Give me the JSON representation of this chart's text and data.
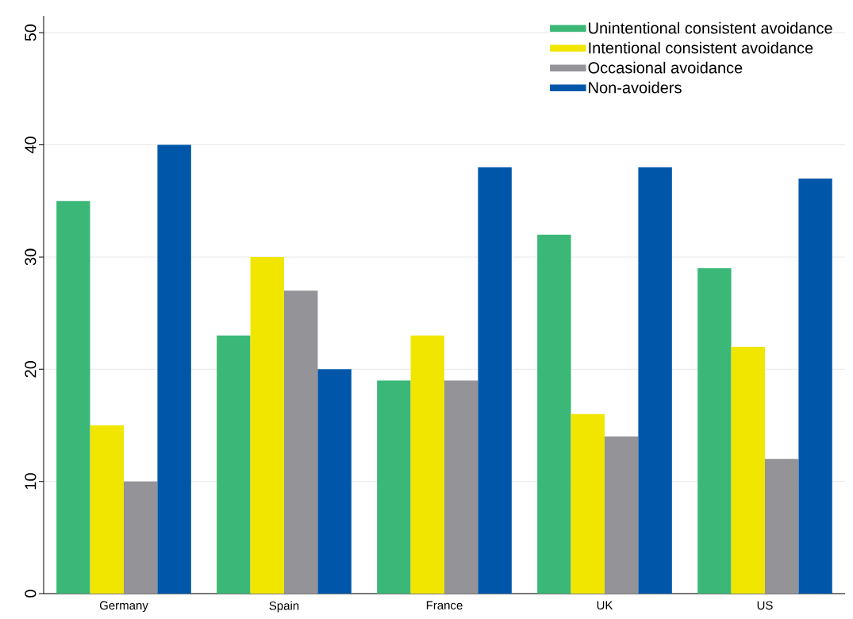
{
  "chart_data": {
    "type": "bar",
    "categories": [
      "Germany",
      "Spain",
      "France",
      "UK",
      "US"
    ],
    "series": [
      {
        "name": "Unintentional consistent avoidance",
        "color": "#3bb878",
        "values": [
          35,
          23,
          19,
          32,
          29
        ]
      },
      {
        "name": "Intentional consistent  avoidance",
        "color": "#f0e600",
        "values": [
          15,
          30,
          23,
          16,
          22
        ]
      },
      {
        "name": "Occasional avoidance",
        "color": "#939398",
        "values": [
          10,
          27,
          19,
          14,
          12
        ]
      },
      {
        "name": "Non-avoiders",
        "color": "#0057aa",
        "values": [
          40,
          20,
          38,
          38,
          37
        ]
      }
    ],
    "ylim": [
      0,
      51.5
    ],
    "yticks": [
      0,
      10,
      20,
      30,
      40,
      50
    ],
    "grid": "y",
    "legend": "top right"
  }
}
